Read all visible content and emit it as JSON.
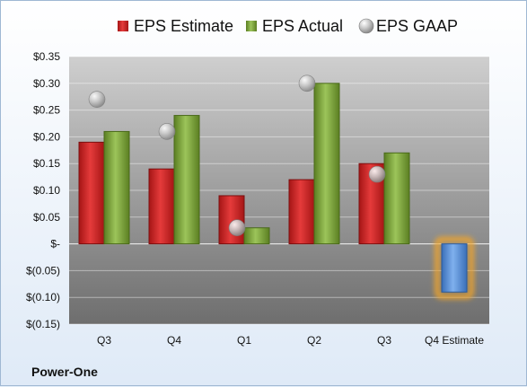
{
  "chart_data": {
    "type": "bar",
    "title": "",
    "company": "Power-One",
    "categories": [
      "Q3",
      "Q4",
      "Q1",
      "Q2",
      "Q3",
      "Q4 Estimate"
    ],
    "series": [
      {
        "name": "EPS Estimate",
        "kind": "bar",
        "color": "#d42a2a",
        "values": [
          0.19,
          0.14,
          0.09,
          0.12,
          0.15,
          null
        ]
      },
      {
        "name": "EPS Actual",
        "kind": "bar",
        "color": "#7ea83a",
        "values": [
          0.21,
          0.24,
          0.03,
          0.3,
          0.17,
          null
        ]
      },
      {
        "name": "EPS GAAP",
        "kind": "scatter",
        "color": "#b8b8b8",
        "values": [
          0.27,
          0.21,
          0.03,
          0.3,
          0.13,
          null
        ]
      },
      {
        "name": "",
        "kind": "bar",
        "color": "#5b8fd6",
        "highlight": "#f5a623",
        "values": [
          null,
          null,
          null,
          null,
          null,
          -0.09
        ]
      }
    ],
    "ylim": [
      -0.15,
      0.35
    ],
    "yticks": [
      0.35,
      0.3,
      0.25,
      0.2,
      0.15,
      0.1,
      0.05,
      0,
      -0.05,
      -0.1,
      -0.15
    ],
    "ytick_labels": [
      "$0.35",
      "$0.30",
      "$0.25",
      "$0.20",
      "$0.15",
      "$0.10",
      "$0.05",
      "$-",
      "$(0.05)",
      "$(0.10)",
      "$(0.15)"
    ],
    "legend_position": "top",
    "grid": true
  }
}
